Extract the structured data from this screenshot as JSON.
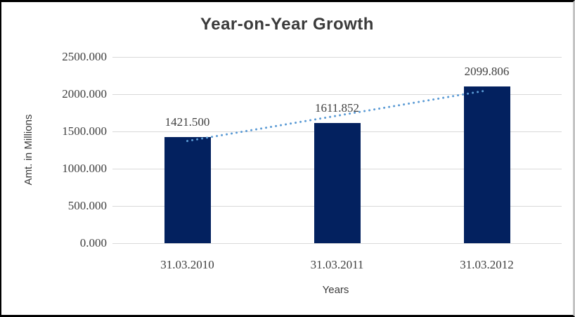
{
  "chart_data": {
    "type": "bar",
    "title": "Year-on-Year Growth",
    "xlabel": "Years",
    "ylabel": "Amt. in Millions",
    "categories": [
      "31.03.2010",
      "31.03.2011",
      "31.03.2012"
    ],
    "values": [
      1421.5,
      1611.852,
      2099.806
    ],
    "data_labels": [
      "1421.500",
      "1611.852",
      "2099.806"
    ],
    "y_ticks": [
      0,
      500,
      1000,
      1500,
      2000,
      2500
    ],
    "y_tick_labels": [
      "0.000",
      "500.000",
      "1000.000",
      "1500.000",
      "2000.000",
      "2500.000"
    ],
    "ylim": [
      0,
      2500
    ],
    "grid": true,
    "legend": "none",
    "trendline": {
      "type": "linear",
      "style": "dotted"
    },
    "colors": {
      "bar": "#03215F",
      "trendline": "#5B9BD5",
      "gridline": "#D9D9D9",
      "text": "#3F3F3F",
      "title": "#3B3B3B"
    }
  }
}
